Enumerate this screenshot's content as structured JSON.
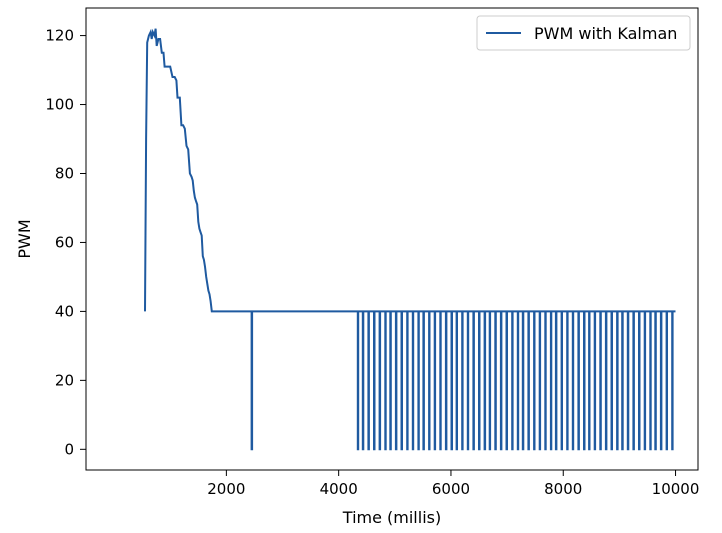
{
  "chart_data": {
    "type": "line",
    "xlabel": "Time (millis)",
    "ylabel": "PWM",
    "xlim": [
      -500,
      10400
    ],
    "ylim": [
      -6,
      128
    ],
    "x_ticks": [
      2000,
      4000,
      6000,
      8000,
      10000
    ],
    "y_ticks": [
      0,
      20,
      40,
      60,
      80,
      100,
      120
    ],
    "grid": false,
    "legend": {
      "position": "top-right"
    },
    "series": [
      {
        "name": "PWM with Kalman",
        "color": "#1f5aa0",
        "ramp": [
          [
            550,
            40
          ],
          [
            570,
            90
          ],
          [
            590,
            118
          ],
          [
            620,
            120
          ],
          [
            650,
            121
          ],
          [
            670,
            119
          ],
          [
            690,
            121
          ],
          [
            720,
            120
          ],
          [
            740,
            122
          ],
          [
            760,
            117
          ],
          [
            790,
            119
          ],
          [
            820,
            119
          ],
          [
            850,
            115
          ],
          [
            880,
            115
          ],
          [
            900,
            111
          ],
          [
            960,
            111
          ],
          [
            1000,
            111
          ],
          [
            1040,
            108
          ],
          [
            1080,
            108
          ],
          [
            1110,
            107
          ],
          [
            1130,
            102
          ],
          [
            1170,
            102
          ],
          [
            1200,
            94
          ],
          [
            1230,
            94
          ],
          [
            1260,
            93
          ],
          [
            1290,
            88
          ],
          [
            1320,
            87
          ],
          [
            1350,
            80
          ],
          [
            1380,
            79
          ],
          [
            1400,
            78
          ],
          [
            1420,
            75
          ],
          [
            1440,
            73
          ],
          [
            1460,
            72
          ],
          [
            1480,
            71
          ],
          [
            1500,
            66
          ],
          [
            1520,
            64
          ],
          [
            1540,
            63
          ],
          [
            1560,
            62
          ],
          [
            1580,
            56
          ],
          [
            1600,
            55
          ],
          [
            1620,
            53
          ],
          [
            1640,
            50
          ],
          [
            1660,
            48
          ],
          [
            1680,
            46
          ],
          [
            1700,
            45
          ],
          [
            1720,
            43
          ],
          [
            1740,
            40
          ],
          [
            1800,
            40
          ],
          [
            1900,
            40
          ],
          [
            2000,
            40
          ],
          [
            2440,
            40
          ]
        ],
        "baseline": 40,
        "dips_to": 0,
        "dip_times": [
          2450,
          4340,
          4430,
          4530,
          4630,
          4730,
          4830,
          4920,
          5020,
          5120,
          5220,
          5320,
          5420,
          5510,
          5610,
          5710,
          5810,
          5910,
          6010,
          6100,
          6200,
          6300,
          6400,
          6500,
          6600,
          6690,
          6790,
          6890,
          6990,
          7090,
          7190,
          7280,
          7380,
          7480,
          7580,
          7680,
          7780,
          7870,
          7970,
          8070,
          8170,
          8270,
          8370,
          8460,
          8560,
          8660,
          8760,
          8860,
          8960,
          9050,
          9150,
          9250,
          9350,
          9450,
          9550,
          9640,
          9740,
          9840,
          9940
        ],
        "x_end": 10000
      }
    ]
  }
}
